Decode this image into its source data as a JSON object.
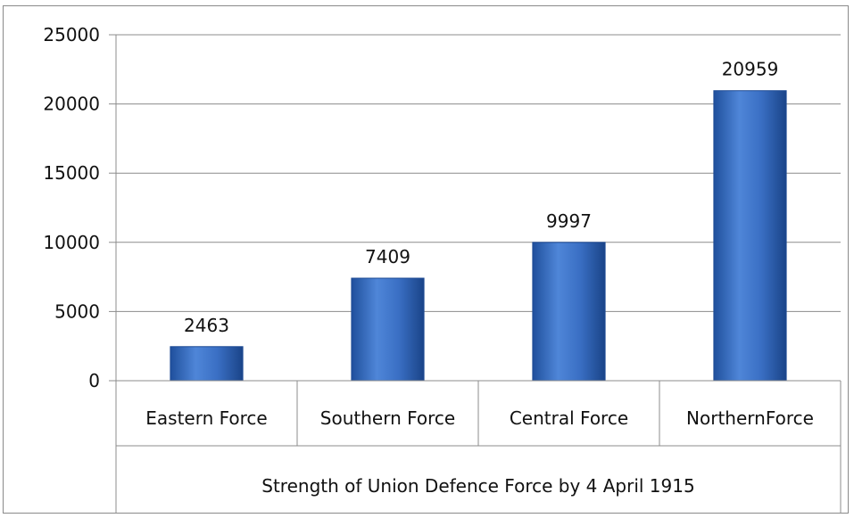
{
  "chart_data": {
    "type": "bar",
    "title": "",
    "xlabel": "Strength of Union Defence Force by 4 April 1915",
    "ylabel": "",
    "categories": [
      "Eastern Force",
      "Southern Force",
      "Central Force",
      "NorthernForce"
    ],
    "series": [
      {
        "values": [
          2463,
          7409,
          9997,
          20959
        ]
      }
    ],
    "data_labels": [
      "2463",
      "7409",
      "9997",
      "20959"
    ],
    "ylim": [
      0,
      25000
    ],
    "yticks": [
      0,
      5000,
      10000,
      15000,
      20000,
      25000
    ],
    "ytick_labels": [
      "0",
      "5000",
      "10000",
      "15000",
      "20000",
      "25000"
    ],
    "grid": true,
    "legend": "none",
    "bar_color": "#3a6fc4",
    "bar_color_dark": "#1d4a94"
  }
}
